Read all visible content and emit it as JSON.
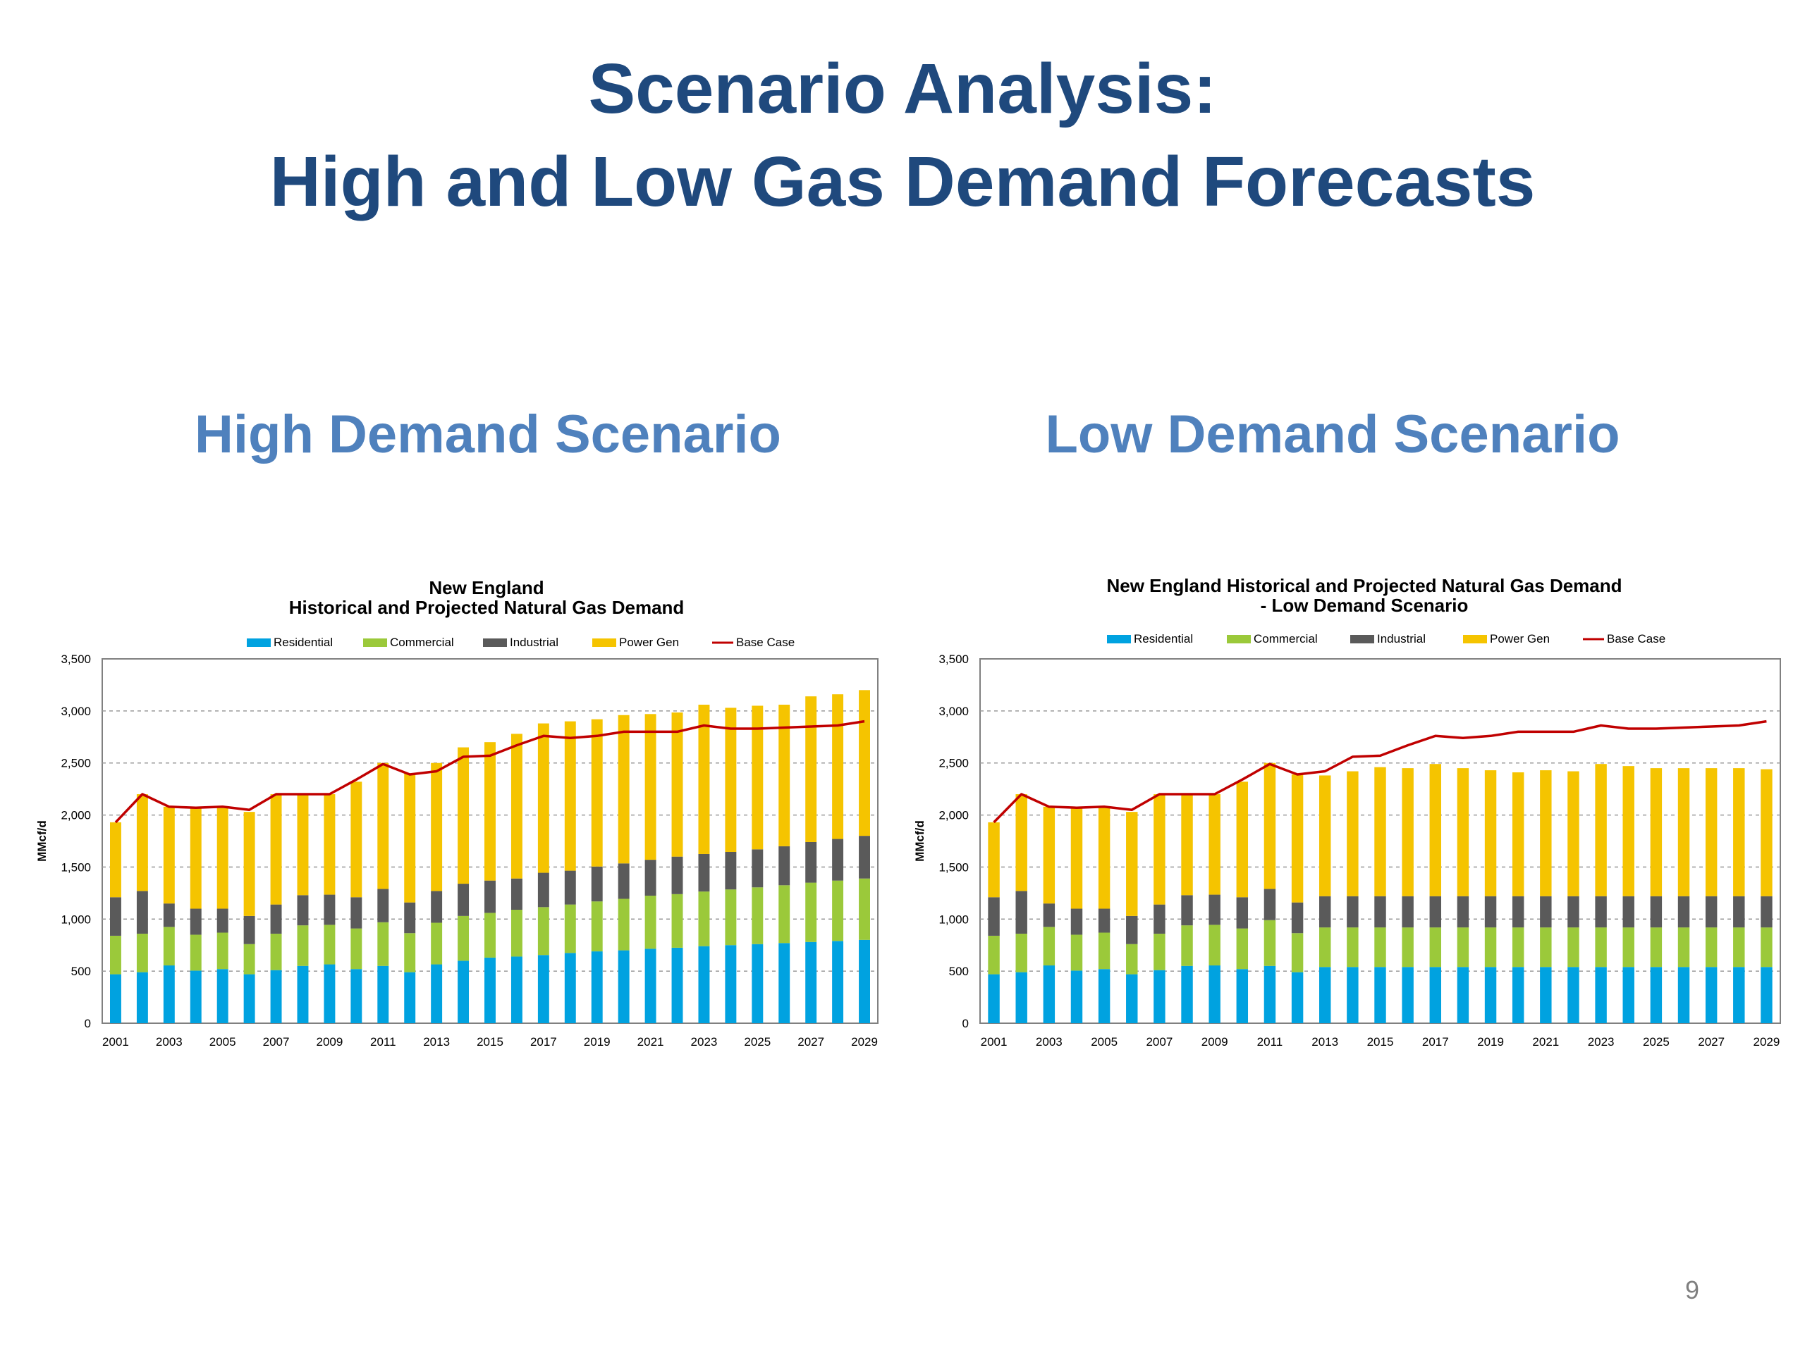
{
  "title": {
    "line1": "Scenario Analysis:",
    "line2": "High and Low Gas Demand Forecasts"
  },
  "scenario_headings": {
    "high": "High Demand Scenario",
    "low": "Low Demand Scenario"
  },
  "page_number": "9",
  "colors": {
    "residential": "#00a2e0",
    "commercial": "#9bc93a",
    "industrial": "#5a5a5a",
    "power_gen": "#f5c400",
    "base_case": "#c00000",
    "title": "#1f497d",
    "subtitle": "#4f81bd"
  },
  "chart_data": [
    {
      "type": "bar",
      "stacked": true,
      "title_lines": [
        "New England",
        "Historical and Projected Natural Gas Demand"
      ],
      "ylabel": "MMcf/d",
      "xlabel": "",
      "ylim": [
        0,
        3500
      ],
      "yticks": [
        "0",
        "500",
        "1,000",
        "1,500",
        "2,000",
        "2,500",
        "3,000",
        "3,500"
      ],
      "ytick_values": [
        0,
        500,
        1000,
        1500,
        2000,
        2500,
        3000,
        3500
      ],
      "grid": "horizontal dashed",
      "legend": "top",
      "categories": [
        "2001",
        "2002",
        "2003",
        "2004",
        "2005",
        "2006",
        "2007",
        "2008",
        "2009",
        "2010",
        "2011",
        "2012",
        "2013",
        "2014",
        "2015",
        "2016",
        "2017",
        "2018",
        "2019",
        "2020",
        "2021",
        "2022",
        "2023",
        "2024",
        "2025",
        "2026",
        "2027",
        "2028",
        "2029"
      ],
      "x_tick_labels": [
        "2001",
        "2003",
        "2005",
        "2007",
        "2009",
        "2011",
        "2013",
        "2015",
        "2017",
        "2019",
        "2021",
        "2023",
        "2025",
        "2027",
        "2029"
      ],
      "series": [
        {
          "name": "Residential",
          "kind": "bar",
          "values": [
            470,
            490,
            555,
            505,
            520,
            470,
            510,
            550,
            565,
            520,
            550,
            490,
            565,
            600,
            630,
            640,
            655,
            675,
            690,
            700,
            715,
            725,
            740,
            750,
            760,
            770,
            780,
            790,
            800
          ]
        },
        {
          "name": "Commercial",
          "kind": "bar",
          "values": [
            370,
            370,
            370,
            345,
            350,
            290,
            350,
            390,
            380,
            390,
            420,
            375,
            400,
            430,
            430,
            450,
            460,
            465,
            480,
            495,
            510,
            515,
            525,
            535,
            545,
            555,
            570,
            580,
            590
          ]
        },
        {
          "name": "Industrial",
          "kind": "bar",
          "values": [
            370,
            410,
            225,
            250,
            230,
            270,
            280,
            290,
            290,
            300,
            320,
            295,
            305,
            310,
            310,
            300,
            330,
            325,
            335,
            340,
            345,
            360,
            360,
            360,
            365,
            375,
            390,
            400,
            410
          ]
        },
        {
          "name": "Power Gen",
          "kind": "bar",
          "values": [
            720,
            930,
            930,
            970,
            980,
            1000,
            1060,
            970,
            965,
            1110,
            1210,
            1240,
            1230,
            1310,
            1330,
            1390,
            1435,
            1435,
            1415,
            1425,
            1400,
            1385,
            1435,
            1385,
            1380,
            1360,
            1400,
            1390,
            1400
          ]
        },
        {
          "name": "Base Case",
          "kind": "line",
          "values": [
            1930,
            2200,
            2080,
            2070,
            2080,
            2050,
            2200,
            2200,
            2200,
            2340,
            2490,
            2390,
            2420,
            2560,
            2570,
            2670,
            2760,
            2740,
            2760,
            2800,
            2800,
            2800,
            2860,
            2830,
            2830,
            2840,
            2850,
            2860,
            2900
          ]
        }
      ]
    },
    {
      "type": "bar",
      "stacked": true,
      "title_lines": [
        "New England Historical and Projected Natural Gas Demand",
        "- Low Demand Scenario"
      ],
      "ylabel": "MMcf/d",
      "xlabel": "",
      "ylim": [
        0,
        3500
      ],
      "yticks": [
        "0",
        "500",
        "1,000",
        "1,500",
        "2,000",
        "2,500",
        "3,000",
        "3,500"
      ],
      "ytick_values": [
        0,
        500,
        1000,
        1500,
        2000,
        2500,
        3000,
        3500
      ],
      "grid": "horizontal dashed",
      "legend": "top",
      "categories": [
        "2001",
        "2002",
        "2003",
        "2004",
        "2005",
        "2006",
        "2007",
        "2008",
        "2009",
        "2010",
        "2011",
        "2012",
        "2013",
        "2014",
        "2015",
        "2016",
        "2017",
        "2018",
        "2019",
        "2020",
        "2021",
        "2022",
        "2023",
        "2024",
        "2025",
        "2026",
        "2027",
        "2028",
        "2029"
      ],
      "x_tick_labels": [
        "2001",
        "2003",
        "2005",
        "2007",
        "2009",
        "2011",
        "2013",
        "2015",
        "2017",
        "2019",
        "2021",
        "2023",
        "2025",
        "2027",
        "2029"
      ],
      "series": [
        {
          "name": "Residential",
          "kind": "bar",
          "values": [
            470,
            490,
            555,
            505,
            520,
            470,
            510,
            550,
            555,
            520,
            550,
            490,
            540,
            540,
            540,
            540,
            540,
            540,
            540,
            540,
            540,
            540,
            540,
            540,
            540,
            540,
            540,
            540,
            540
          ]
        },
        {
          "name": "Commercial",
          "kind": "bar",
          "values": [
            370,
            370,
            370,
            345,
            350,
            290,
            350,
            390,
            390,
            390,
            440,
            375,
            380,
            380,
            380,
            380,
            380,
            380,
            380,
            380,
            380,
            380,
            380,
            380,
            380,
            380,
            380,
            380,
            380
          ]
        },
        {
          "name": "Industrial",
          "kind": "bar",
          "values": [
            370,
            410,
            225,
            250,
            230,
            270,
            280,
            290,
            290,
            300,
            300,
            295,
            300,
            300,
            300,
            300,
            300,
            300,
            300,
            300,
            300,
            300,
            300,
            300,
            300,
            300,
            300,
            300,
            300
          ]
        },
        {
          "name": "Power Gen",
          "kind": "bar",
          "values": [
            720,
            930,
            930,
            970,
            980,
            1000,
            1060,
            970,
            965,
            1110,
            1210,
            1230,
            1160,
            1200,
            1240,
            1230,
            1270,
            1230,
            1210,
            1190,
            1210,
            1200,
            1270,
            1250,
            1230,
            1230,
            1230,
            1230,
            1220
          ]
        },
        {
          "name": "Base Case",
          "kind": "line",
          "values": [
            1930,
            2200,
            2080,
            2070,
            2080,
            2050,
            2200,
            2200,
            2200,
            2340,
            2490,
            2390,
            2420,
            2560,
            2570,
            2670,
            2760,
            2740,
            2760,
            2800,
            2800,
            2800,
            2860,
            2830,
            2830,
            2840,
            2850,
            2860,
            2900
          ]
        }
      ]
    }
  ]
}
